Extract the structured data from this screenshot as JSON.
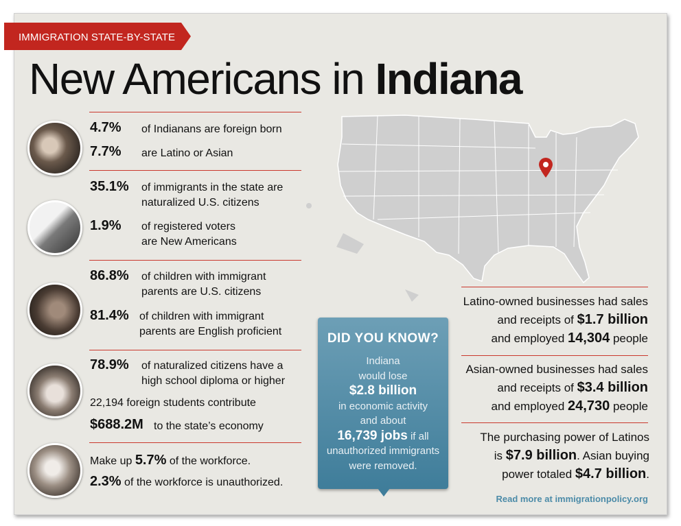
{
  "header": {
    "banner": "IMMIGRATION STATE-BY-STATE",
    "title_light": "New Americans in ",
    "title_bold": "Indiana"
  },
  "stats": {
    "s1": {
      "num": "4.7%",
      "text": "of Indianans are foreign born"
    },
    "s2": {
      "num": "7.7%",
      "text": "are Latino or Asian"
    },
    "s3": {
      "num": "35.1%",
      "line1": "of immigrants in the state are",
      "line2": "naturalized U.S. citizens"
    },
    "s4": {
      "num": "1.9%",
      "line1": "of registered voters",
      "line2": "are New Americans"
    },
    "s5": {
      "num": "86.8%",
      "line1": "of children with immigrant",
      "line2": "parents are U.S. citizens"
    },
    "s6": {
      "num": "81.4%",
      "line1": "of children with immigrant",
      "line2": "parents are English proficient"
    },
    "s7": {
      "num": "78.9%",
      "line1": "of naturalized citizens have a",
      "line2": "high school diploma or higher"
    },
    "s8": {
      "line1": "22,194 foreign students contribute",
      "num": "$688.2M",
      "text": "to the state’s economy"
    },
    "s9": {
      "pre": "Make up ",
      "num": "5.7%",
      "post": " of the workforce."
    },
    "s10": {
      "num": "2.3%",
      "text": " of the workforce is unauthorized."
    }
  },
  "did_you_know": {
    "title": "DID YOU KNOW?",
    "l1": "Indiana",
    "l2": "would lose",
    "l3": "$2.8 billion",
    "l4": "in economic activity",
    "l5": "and about",
    "l6a": "16,739 jobs",
    "l6b": " if all",
    "l7": "unauthorized immigrants",
    "l8": "were removed."
  },
  "right": {
    "p1": {
      "l1": "Latino-owned businesses had sales",
      "l2a": "and receipts of ",
      "l2b": "$1.7 billion",
      "l3a": "and employed ",
      "l3b": "14,304",
      "l3c": " people"
    },
    "p2": {
      "l1": "Asian-owned businesses had sales",
      "l2a": "and receipts of ",
      "l2b": "$3.4 billion",
      "l3a": "and employed ",
      "l3b": "24,730",
      "l3c": " people"
    },
    "p3": {
      "l1": "The purchasing power of Latinos",
      "l2a": "is ",
      "l2b": "$7.9 billion",
      "l2c": ". Asian buying",
      "l3a": "power totaled ",
      "l3b": "$4.7 billion",
      "l3c": "."
    }
  },
  "footer": {
    "read_more": "Read more at immigrationpolicy.org"
  },
  "colors": {
    "accent": "#c9372c",
    "callout": "#4f8ba7",
    "background": "#e9e8e3"
  }
}
